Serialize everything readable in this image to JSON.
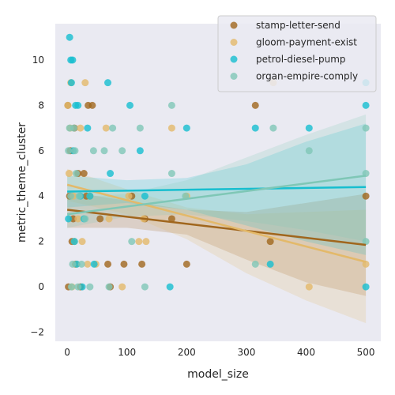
{
  "chart_data": {
    "type": "scatter",
    "xlabel": "model_size",
    "ylabel": "metric_theme_cluster",
    "xlim": [
      -20,
      525
    ],
    "ylim": [
      -2.4,
      11.6
    ],
    "x_ticks": [
      0,
      100,
      200,
      300,
      400,
      500
    ],
    "y_ticks": [
      -2,
      0,
      2,
      4,
      6,
      8,
      10
    ],
    "grid": false,
    "legend_position": "top-right",
    "background": "#eaeaf2",
    "series": [
      {
        "name": "stamp-letter-send",
        "color": "#a0661d",
        "points": [
          [
            1,
            8
          ],
          [
            2,
            0
          ],
          [
            4,
            4
          ],
          [
            5,
            6
          ],
          [
            8,
            2
          ],
          [
            10,
            3
          ],
          [
            12,
            7
          ],
          [
            14,
            1
          ],
          [
            18,
            5
          ],
          [
            22,
            0
          ],
          [
            28,
            5
          ],
          [
            32,
            4
          ],
          [
            35,
            8
          ],
          [
            42,
            8
          ],
          [
            55,
            3
          ],
          [
            68,
            1
          ],
          [
            72,
            0
          ],
          [
            95,
            1
          ],
          [
            108,
            4
          ],
          [
            125,
            1
          ],
          [
            130,
            3
          ],
          [
            175,
            3
          ],
          [
            200,
            1
          ],
          [
            315,
            8
          ],
          [
            340,
            2
          ],
          [
            500,
            4
          ]
        ],
        "fit": {
          "intercept": 3.4,
          "slope": -0.0031
        },
        "ci": [
          [
            0,
            4.2,
            2.6
          ],
          [
            100,
            3.8,
            2.6
          ],
          [
            200,
            3.4,
            2.3
          ],
          [
            300,
            3.3,
            1.2
          ],
          [
            400,
            3.7,
            0.2
          ],
          [
            500,
            4.1,
            -0.4
          ]
        ]
      },
      {
        "name": "gloom-payment-exist",
        "color": "#e3b96a",
        "points": [
          [
            1,
            8
          ],
          [
            3,
            5
          ],
          [
            5,
            7
          ],
          [
            6,
            9
          ],
          [
            8,
            0
          ],
          [
            10,
            4
          ],
          [
            12,
            2
          ],
          [
            15,
            1
          ],
          [
            18,
            3
          ],
          [
            22,
            7
          ],
          [
            25,
            2
          ],
          [
            30,
            9
          ],
          [
            34,
            1
          ],
          [
            38,
            4
          ],
          [
            48,
            1
          ],
          [
            65,
            7
          ],
          [
            70,
            3
          ],
          [
            92,
            0
          ],
          [
            103,
            4
          ],
          [
            120,
            2
          ],
          [
            128,
            3
          ],
          [
            132,
            2
          ],
          [
            175,
            7
          ],
          [
            200,
            4
          ],
          [
            345,
            9
          ],
          [
            405,
            0
          ],
          [
            500,
            1
          ]
        ],
        "fit": {
          "intercept": 4.5,
          "slope": -0.0068
        },
        "ci": [
          [
            0,
            5.2,
            3.8
          ],
          [
            100,
            4.3,
            3.2
          ],
          [
            200,
            3.5,
            2.1
          ],
          [
            300,
            3.2,
            0.6
          ],
          [
            400,
            3.3,
            -0.6
          ],
          [
            500,
            3.4,
            -1.6
          ]
        ]
      },
      {
        "name": "petrol-diesel-pump",
        "color": "#17becf",
        "points": [
          [
            2,
            3
          ],
          [
            4,
            11
          ],
          [
            6,
            10
          ],
          [
            7,
            9
          ],
          [
            9,
            10
          ],
          [
            10,
            6
          ],
          [
            12,
            2
          ],
          [
            14,
            8
          ],
          [
            16,
            1
          ],
          [
            18,
            8
          ],
          [
            22,
            4
          ],
          [
            25,
            0
          ],
          [
            28,
            3
          ],
          [
            34,
            7
          ],
          [
            38,
            4
          ],
          [
            45,
            1
          ],
          [
            68,
            9
          ],
          [
            72,
            5
          ],
          [
            105,
            8
          ],
          [
            122,
            6
          ],
          [
            130,
            4
          ],
          [
            172,
            0
          ],
          [
            200,
            7
          ],
          [
            315,
            7
          ],
          [
            340,
            1
          ],
          [
            405,
            7
          ],
          [
            500,
            8
          ],
          [
            500,
            0
          ],
          [
            500,
            9
          ]
        ],
        "fit": {
          "intercept": 4.2,
          "slope": 0.0004
        },
        "ci": [
          [
            0,
            4.9,
            3.5
          ],
          [
            100,
            4.7,
            3.7
          ],
          [
            200,
            4.8,
            3.4
          ],
          [
            300,
            5.4,
            2.7
          ],
          [
            400,
            6.4,
            2.0
          ],
          [
            500,
            7.2,
            1.4
          ]
        ]
      },
      {
        "name": "organ-empire-comply",
        "color": "#7fc7b6",
        "points": [
          [
            2,
            6
          ],
          [
            4,
            7
          ],
          [
            6,
            4
          ],
          [
            7,
            0
          ],
          [
            9,
            1
          ],
          [
            11,
            7
          ],
          [
            13,
            6
          ],
          [
            15,
            5
          ],
          [
            18,
            0
          ],
          [
            20,
            4
          ],
          [
            24,
            1
          ],
          [
            30,
            3
          ],
          [
            38,
            0
          ],
          [
            44,
            6
          ],
          [
            62,
            6
          ],
          [
            70,
            0
          ],
          [
            76,
            7
          ],
          [
            92,
            6
          ],
          [
            108,
            2
          ],
          [
            122,
            7
          ],
          [
            130,
            0
          ],
          [
            175,
            5
          ],
          [
            175,
            8
          ],
          [
            198,
            4
          ],
          [
            315,
            1
          ],
          [
            345,
            7
          ],
          [
            405,
            6
          ],
          [
            500,
            5
          ],
          [
            500,
            7
          ],
          [
            500,
            2
          ]
        ],
        "fit": {
          "intercept": 3.2,
          "slope": 0.0034
        },
        "ci": [
          [
            0,
            3.9,
            2.6
          ],
          [
            100,
            4.1,
            3.1
          ],
          [
            200,
            4.7,
            3.2
          ],
          [
            300,
            5.7,
            2.9
          ],
          [
            400,
            6.7,
            2.5
          ],
          [
            500,
            7.6,
            2.0
          ]
        ]
      }
    ]
  }
}
